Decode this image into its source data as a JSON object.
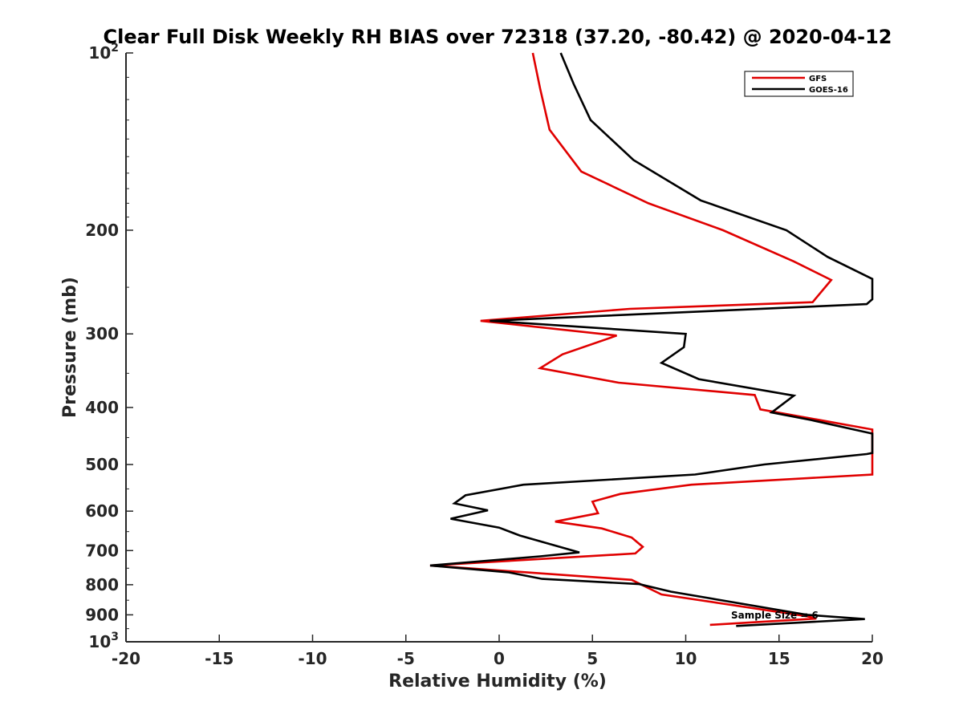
{
  "chart_data": {
    "type": "line",
    "title": "Clear Full Disk Weekly RH BIAS over 72318 (37.20, -80.42) @ 2020-04-12",
    "xlabel": "Relative Humidity (%)",
    "ylabel": "Pressure (mb)",
    "xlim": [
      -20,
      20
    ],
    "ylim": [
      100,
      1000
    ],
    "y_scale": "log",
    "y_reversed": true,
    "grid": false,
    "x_ticks": [
      "-20",
      "-15",
      "-10",
      "-5",
      "0",
      "5",
      "10",
      "15",
      "20"
    ],
    "y_ticks": [
      {
        "value": 100,
        "base": "10",
        "exp": "2"
      },
      {
        "value": 200,
        "base": "200",
        "exp": ""
      },
      {
        "value": 300,
        "base": "300",
        "exp": ""
      },
      {
        "value": 400,
        "base": "400",
        "exp": ""
      },
      {
        "value": 500,
        "base": "500",
        "exp": ""
      },
      {
        "value": 600,
        "base": "600",
        "exp": ""
      },
      {
        "value": 700,
        "base": "700",
        "exp": ""
      },
      {
        "value": 800,
        "base": "800",
        "exp": ""
      },
      {
        "value": 900,
        "base": "900",
        "exp": ""
      },
      {
        "value": 1000,
        "base": "10",
        "exp": "3"
      }
    ],
    "legend": {
      "placement": "top-right",
      "entries": [
        "GFS",
        "GOES-16"
      ]
    },
    "annotation": "Sample Size = 6",
    "series": [
      {
        "name": "GFS",
        "color": "#e00000",
        "points": [
          [
            1.8,
            100
          ],
          [
            2.2,
            115
          ],
          [
            2.7,
            135
          ],
          [
            4.4,
            159
          ],
          [
            8,
            180
          ],
          [
            12,
            200
          ],
          [
            15.8,
            226
          ],
          [
            17.8,
            243
          ],
          [
            16.8,
            265
          ],
          [
            7,
            272
          ],
          [
            -1,
            285
          ],
          [
            6.3,
            302
          ],
          [
            3.4,
            325
          ],
          [
            2.2,
            343
          ],
          [
            6.4,
            363
          ],
          [
            13.7,
            381
          ],
          [
            14,
            403
          ],
          [
            20,
            436
          ],
          [
            20,
            520
          ],
          [
            10.3,
            541
          ],
          [
            6.5,
            561
          ],
          [
            5,
            578
          ],
          [
            5.3,
            605
          ],
          [
            3,
            625
          ],
          [
            5.5,
            642
          ],
          [
            7.1,
            665
          ],
          [
            7.7,
            690
          ],
          [
            7.3,
            708
          ],
          [
            -3.7,
            742
          ],
          [
            7.1,
            785
          ],
          [
            8.7,
            831
          ],
          [
            16.5,
            905
          ],
          [
            17,
            913
          ],
          [
            11.3,
            936
          ]
        ]
      },
      {
        "name": "GOES-16",
        "color": "#000000",
        "points": [
          [
            3.3,
            100
          ],
          [
            4,
            113
          ],
          [
            4.9,
            130
          ],
          [
            7.2,
            152
          ],
          [
            10.8,
            178
          ],
          [
            15.4,
            200
          ],
          [
            17.6,
            222
          ],
          [
            20,
            242
          ],
          [
            20,
            262
          ],
          [
            19.7,
            267
          ],
          [
            -0.5,
            285
          ],
          [
            10,
            300
          ],
          [
            9.9,
            316
          ],
          [
            8.7,
            336
          ],
          [
            10.7,
            358
          ],
          [
            15.8,
            382
          ],
          [
            14.6,
            408
          ],
          [
            16.7,
            420
          ],
          [
            20,
            443
          ],
          [
            20,
            478
          ],
          [
            19.7,
            480
          ],
          [
            14.2,
            500
          ],
          [
            10.5,
            520
          ],
          [
            1.3,
            541
          ],
          [
            -1.8,
            564
          ],
          [
            -2.4,
            582
          ],
          [
            -0.6,
            598
          ],
          [
            -2.6,
            618
          ],
          [
            0,
            640
          ],
          [
            1.1,
            660
          ],
          [
            4.3,
            705
          ],
          [
            2.2,
            716
          ],
          [
            -3.7,
            742
          ],
          [
            0.5,
            762
          ],
          [
            2.3,
            782
          ],
          [
            7.5,
            798
          ],
          [
            9.2,
            822
          ],
          [
            16.5,
            900
          ],
          [
            19.6,
            915
          ],
          [
            12.7,
            940
          ]
        ]
      }
    ]
  }
}
